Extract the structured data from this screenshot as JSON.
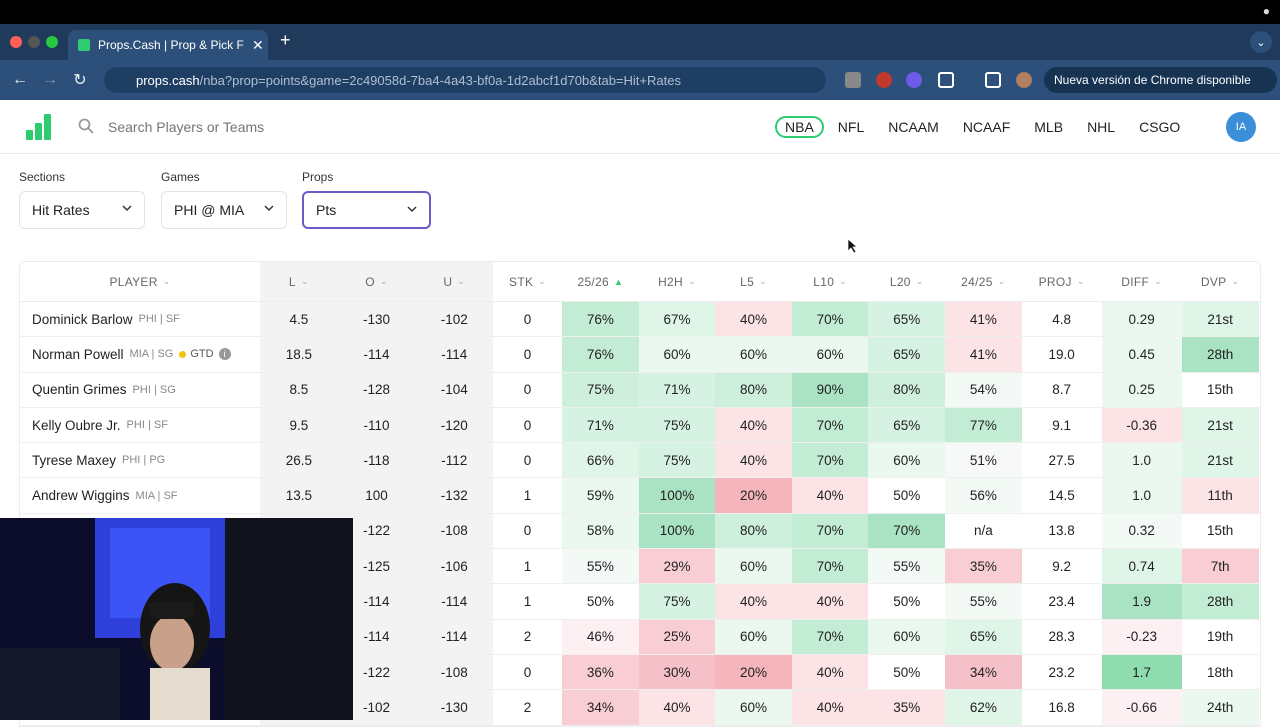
{
  "browser": {
    "tab_title": "Props.Cash | Prop & Pick Finder",
    "url_host": "props.cash",
    "url_path": "/nba?prop=points&game=2c49058d-7ba4-4a43-bf0a-1d2abcf1d70b&tab=Hit+Rates",
    "update_label": "Nueva versión de Chrome disponible"
  },
  "site": {
    "search_placeholder": "Search Players or Teams",
    "leagues": [
      "NBA",
      "NFL",
      "NCAAM",
      "NCAAF",
      "MLB",
      "NHL",
      "CSGO"
    ],
    "active_league": "NBA",
    "avatar_initials": "IA"
  },
  "filters": {
    "sections_label": "Sections",
    "sections_value": "Hit Rates",
    "games_label": "Games",
    "games_value": "PHI @ MIA",
    "props_label": "Props",
    "props_value": "Pts"
  },
  "table": {
    "headers": [
      "PLAYER",
      "L",
      "O",
      "U",
      "STK",
      "25/26",
      "H2H",
      "L5",
      "L10",
      "L20",
      "24/25",
      "PROJ",
      "DIFF",
      "DVP"
    ],
    "rows": [
      {
        "name": "Dominick Barlow",
        "meta": "PHI | SF",
        "gtd": "",
        "cells": [
          "4.5",
          "-130",
          "-102",
          "0",
          "76%",
          "67%",
          "40%",
          "70%",
          "65%",
          "41%",
          "4.8",
          "0.29",
          "21st"
        ]
      },
      {
        "name": "Norman Powell",
        "meta": "MIA | SG",
        "gtd": "GTD",
        "cells": [
          "18.5",
          "-114",
          "-114",
          "0",
          "76%",
          "60%",
          "60%",
          "60%",
          "65%",
          "41%",
          "19.0",
          "0.45",
          "28th"
        ]
      },
      {
        "name": "Quentin Grimes",
        "meta": "PHI | SG",
        "gtd": "",
        "cells": [
          "8.5",
          "-128",
          "-104",
          "0",
          "75%",
          "71%",
          "80%",
          "90%",
          "80%",
          "54%",
          "8.7",
          "0.25",
          "15th"
        ]
      },
      {
        "name": "Kelly Oubre Jr.",
        "meta": "PHI | SF",
        "gtd": "",
        "cells": [
          "9.5",
          "-110",
          "-120",
          "0",
          "71%",
          "75%",
          "40%",
          "70%",
          "65%",
          "77%",
          "9.1",
          "-0.36",
          "21st"
        ]
      },
      {
        "name": "Tyrese Maxey",
        "meta": "PHI | PG",
        "gtd": "",
        "cells": [
          "26.5",
          "-118",
          "-112",
          "0",
          "66%",
          "75%",
          "40%",
          "70%",
          "60%",
          "51%",
          "27.5",
          "1.0",
          "21st"
        ]
      },
      {
        "name": "Andrew Wiggins",
        "meta": "MIA | SF",
        "gtd": "",
        "cells": [
          "13.5",
          "100",
          "-132",
          "1",
          "59%",
          "100%",
          "20%",
          "40%",
          "50%",
          "56%",
          "14.5",
          "1.0",
          "11th"
        ]
      },
      {
        "name": "",
        "meta": "",
        "gtd": "",
        "cells": [
          "",
          "-122",
          "-108",
          "0",
          "58%",
          "100%",
          "80%",
          "70%",
          "70%",
          "n/a",
          "13.8",
          "0.32",
          "15th"
        ]
      },
      {
        "name": "",
        "meta": "",
        "gtd": "",
        "cells": [
          "",
          "-125",
          "-106",
          "1",
          "55%",
          "29%",
          "60%",
          "70%",
          "55%",
          "35%",
          "9.2",
          "0.74",
          "7th"
        ]
      },
      {
        "name": "",
        "meta": "",
        "gtd": "",
        "cells": [
          "",
          "-114",
          "-114",
          "1",
          "50%",
          "75%",
          "40%",
          "40%",
          "50%",
          "55%",
          "23.4",
          "1.9",
          "28th"
        ]
      },
      {
        "name": "",
        "meta": "",
        "gtd": "",
        "cells": [
          "",
          "-114",
          "-114",
          "2",
          "46%",
          "25%",
          "60%",
          "70%",
          "60%",
          "65%",
          "28.3",
          "-0.23",
          "19th"
        ]
      },
      {
        "name": "",
        "meta": "",
        "gtd": "",
        "cells": [
          "",
          "-122",
          "-108",
          "0",
          "36%",
          "30%",
          "20%",
          "40%",
          "50%",
          "34%",
          "23.2",
          "1.7",
          "18th"
        ]
      },
      {
        "name": "",
        "meta": "",
        "gtd": "",
        "cells": [
          "",
          "-102",
          "-130",
          "2",
          "34%",
          "40%",
          "60%",
          "40%",
          "35%",
          "62%",
          "16.8",
          "-0.66",
          "24th"
        ]
      }
    ],
    "cell_colors": [
      [
        "#c3ecd5",
        "#dff5e8",
        "#fbe3e6",
        "#c3ecd5",
        "#d6f2e2",
        "#fbe3e6",
        "#fff",
        "#eaf8f0",
        "#dff5e8"
      ],
      [
        "#c3ecd5",
        "#eaf8f0",
        "#eaf8f0",
        "#eaf8f0",
        "#d6f2e2",
        "#fbe3e6",
        "#fff",
        "#eaf8f0",
        "#a9e3c3"
      ],
      [
        "#cdefdc",
        "#d6f2e2",
        "#cdefdc",
        "#a9e3c3",
        "#cdefdc",
        "#f3faf6",
        "#fff",
        "#eaf8f0",
        "#fff"
      ],
      [
        "#d6f2e2",
        "#d6f2e2",
        "#fbe3e6",
        "#c3ecd5",
        "#d6f2e2",
        "#c3ecd5",
        "#fff",
        "#fbe3e6",
        "#dff5e8"
      ],
      [
        "#dff5e8",
        "#d6f2e2",
        "#fbe3e6",
        "#c3ecd5",
        "#eaf8f0",
        "#f7f9f8",
        "#fff",
        "#eaf8f0",
        "#dff5e8"
      ],
      [
        "#eaf8f0",
        "#a9e3c3",
        "#f5b5bd",
        "#fbe3e6",
        "#fff",
        "#f3faf6",
        "#fff",
        "#eaf8f0",
        "#fbe3e6"
      ],
      [
        "#eaf8f0",
        "#a9e3c3",
        "#cdefdc",
        "#c3ecd5",
        "#a9e3c3",
        "#fff",
        "#fff",
        "#f3faf6",
        "#fff"
      ],
      [
        "#f3faf6",
        "#f8cdd3",
        "#eaf8f0",
        "#c3ecd5",
        "#f3faf6",
        "#f8cdd3",
        "#fff",
        "#dff5e8",
        "#f8cdd3"
      ],
      [
        "#fff",
        "#d6f2e2",
        "#fbe3e6",
        "#fbe3e6",
        "#fff",
        "#f3faf6",
        "#fff",
        "#a9e3c3",
        "#c3ecd5"
      ],
      [
        "#fdf0f2",
        "#f8cdd3",
        "#eaf8f0",
        "#c3ecd5",
        "#eaf8f0",
        "#dff5e8",
        "#fff",
        "#fdf0f2",
        "#fff"
      ],
      [
        "#f8cdd3",
        "#f5c0c7",
        "#f5b5bd",
        "#fbe3e6",
        "#fff",
        "#f5c0c7",
        "#fff",
        "#8fdcae",
        "#fff"
      ],
      [
        "#f8cdd3",
        "#fbe3e6",
        "#eaf8f0",
        "#fbe3e6",
        "#fbe3e6",
        "#dff5e8",
        "#fff",
        "#fdf0f2",
        "#eaf8f0"
      ]
    ]
  }
}
